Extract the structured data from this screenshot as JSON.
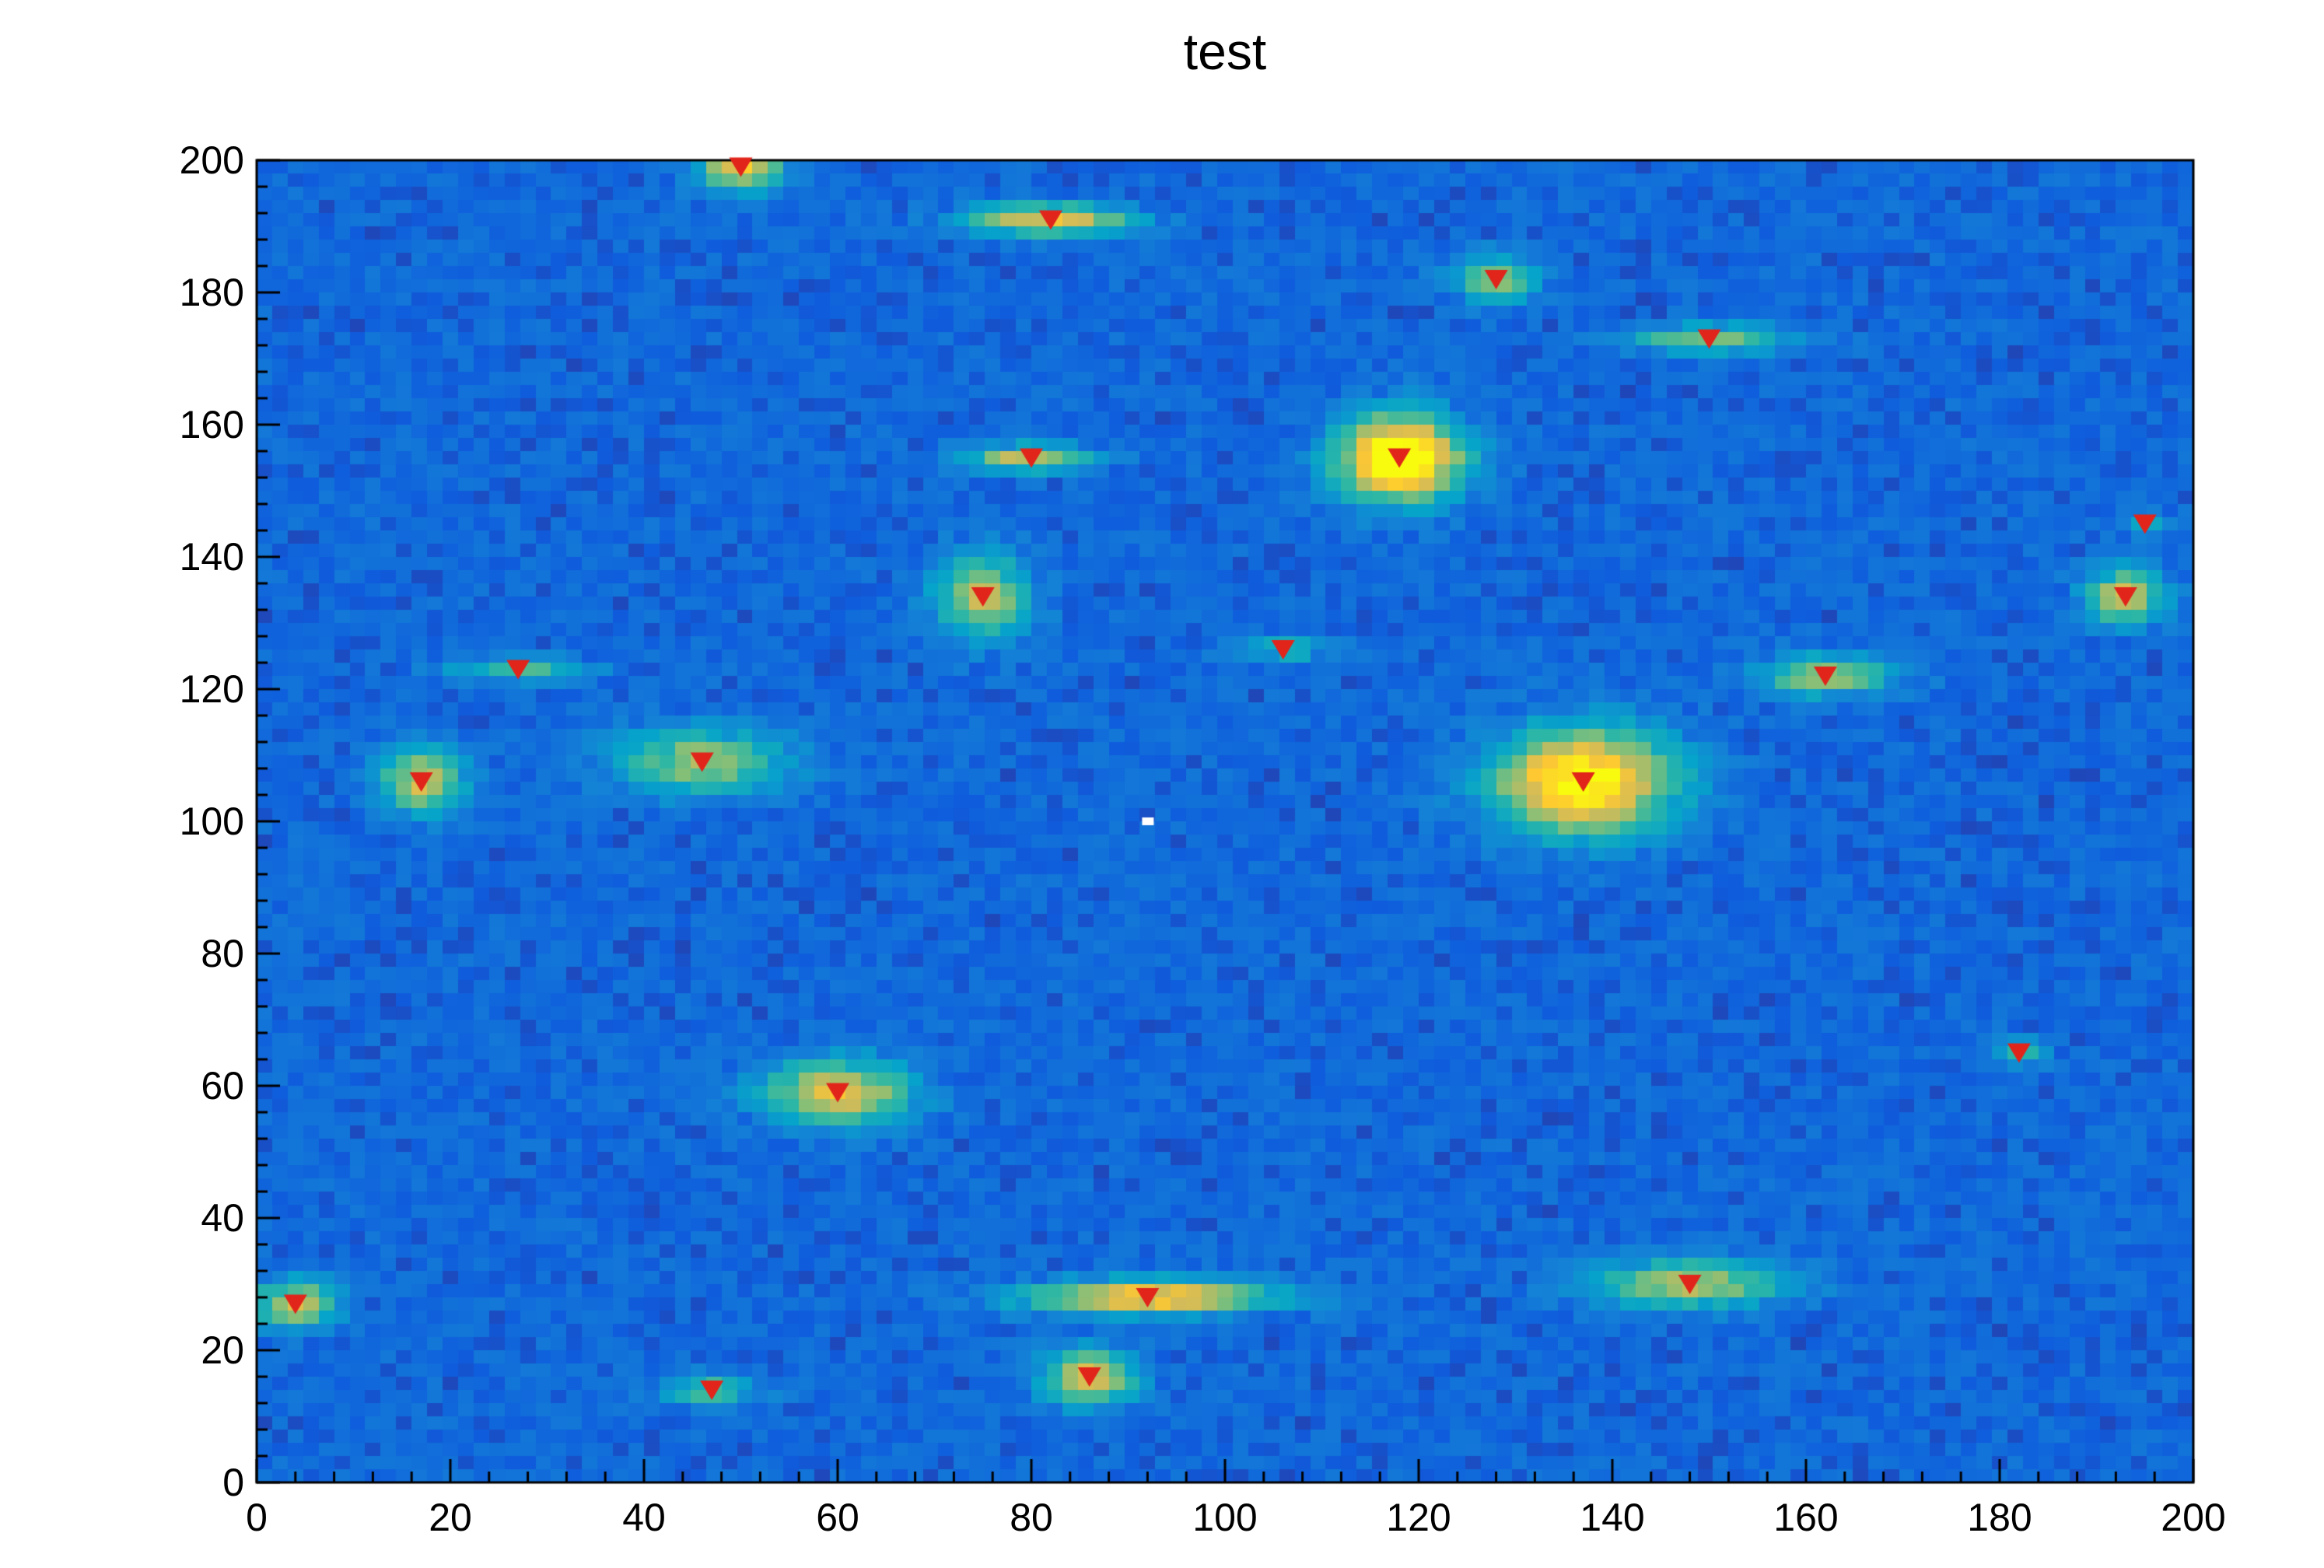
{
  "chart_data": {
    "type": "heatmap",
    "title": "test",
    "xlabel": "",
    "ylabel": "",
    "xlim": [
      0,
      200
    ],
    "ylim": [
      0,
      200
    ],
    "x_ticks": [
      0,
      20,
      40,
      60,
      80,
      100,
      120,
      140,
      160,
      180,
      200
    ],
    "y_ticks": [
      0,
      20,
      40,
      60,
      80,
      100,
      120,
      140,
      160,
      180,
      200
    ],
    "x_minor_step": 4,
    "y_minor_step": 4,
    "grid": false,
    "legend": "none",
    "background_color": "#ffffff",
    "frame_color": "#000000",
    "text_color": "#000000",
    "marker_color": "#e1251b",
    "marker_type": "triangle-down",
    "palette": [
      "#352a87",
      "#0f5cdd",
      "#1481d6",
      "#06a4ca",
      "#2eb7a4",
      "#87bf77",
      "#d1bb59",
      "#fec832",
      "#f9fb0e"
    ],
    "bins": {
      "nx": 125,
      "ny": 100
    },
    "noise": {
      "base": 0.07,
      "amplitude": 0.15,
      "skew": 0.6,
      "seed": 1337
    },
    "white_pixel": {
      "x": 92,
      "y": 100
    },
    "sources": [
      {
        "x": 50,
        "y": 199,
        "amp": 0.7,
        "sx": 3.0,
        "sy": 2.5
      },
      {
        "x": 82,
        "y": 191,
        "amp": 0.65,
        "sx": 6.0,
        "sy": 1.6
      },
      {
        "x": 128,
        "y": 182,
        "amp": 0.5,
        "sx": 3.0,
        "sy": 2.5
      },
      {
        "x": 150,
        "y": 173,
        "amp": 0.45,
        "sx": 6.0,
        "sy": 1.5
      },
      {
        "x": 80,
        "y": 155,
        "amp": 0.6,
        "sx": 4.5,
        "sy": 1.4
      },
      {
        "x": 118,
        "y": 155,
        "amp": 1.0,
        "sx": 4.5,
        "sy": 4.5
      },
      {
        "x": 195,
        "y": 145,
        "amp": 0.25,
        "sx": 2.0,
        "sy": 1.5
      },
      {
        "x": 75,
        "y": 134,
        "amp": 0.55,
        "sx": 3.5,
        "sy": 4.5
      },
      {
        "x": 193,
        "y": 134,
        "amp": 0.6,
        "sx": 2.8,
        "sy": 3.0
      },
      {
        "x": 106,
        "y": 126,
        "amp": 0.35,
        "sx": 3.5,
        "sy": 1.0
      },
      {
        "x": 27,
        "y": 123,
        "amp": 0.38,
        "sx": 5.0,
        "sy": 1.2
      },
      {
        "x": 162,
        "y": 122,
        "amp": 0.5,
        "sx": 5.0,
        "sy": 2.2
      },
      {
        "x": 46,
        "y": 109,
        "amp": 0.5,
        "sx": 6.5,
        "sy": 3.5
      },
      {
        "x": 17,
        "y": 106,
        "amp": 0.6,
        "sx": 3.0,
        "sy": 3.5
      },
      {
        "x": 137,
        "y": 106,
        "amp": 0.9,
        "sx": 6.5,
        "sy": 5.5
      },
      {
        "x": 182,
        "y": 65,
        "amp": 0.3,
        "sx": 2.0,
        "sy": 1.5
      },
      {
        "x": 60,
        "y": 59,
        "amp": 0.65,
        "sx": 5.5,
        "sy": 3.5
      },
      {
        "x": 148,
        "y": 30,
        "amp": 0.55,
        "sx": 7.0,
        "sy": 2.5
      },
      {
        "x": 92,
        "y": 28,
        "amp": 0.75,
        "sx": 9.0,
        "sy": 1.8
      },
      {
        "x": 4,
        "y": 27,
        "amp": 0.6,
        "sx": 3.0,
        "sy": 2.5
      },
      {
        "x": 86,
        "y": 16,
        "amp": 0.6,
        "sx": 3.5,
        "sy": 3.0
      },
      {
        "x": 47,
        "y": 14,
        "amp": 0.4,
        "sx": 3.5,
        "sy": 1.5
      }
    ]
  }
}
